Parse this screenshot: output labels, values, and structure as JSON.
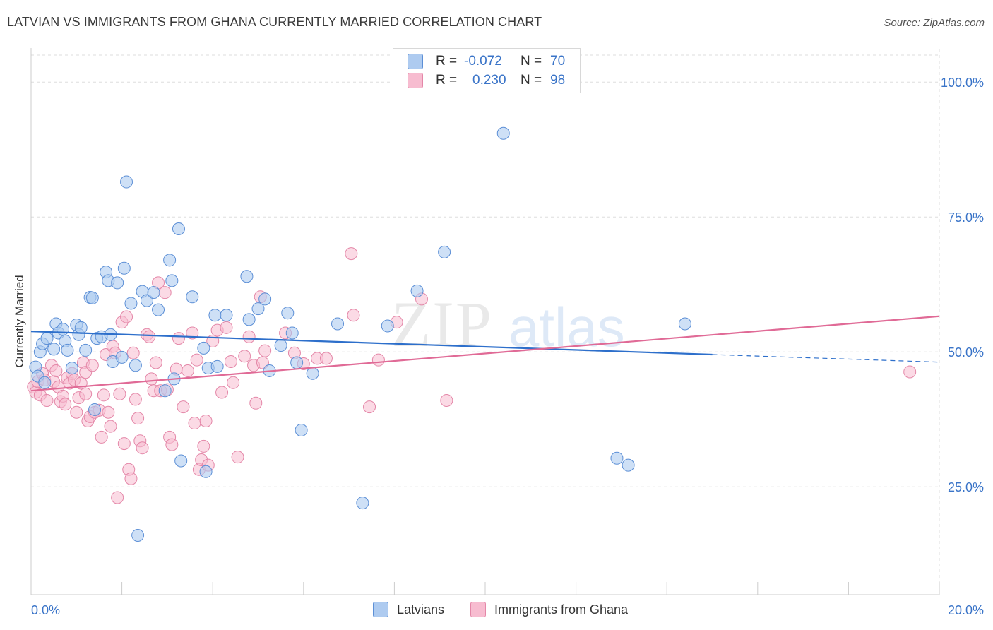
{
  "title": "LATVIAN VS IMMIGRANTS FROM GHANA CURRENTLY MARRIED CORRELATION CHART",
  "source": "Source: ZipAtlas.com",
  "watermark": {
    "zip": "ZIP",
    "atlas": "atlas"
  },
  "legend": {
    "latvians": {
      "r_label": "R =",
      "r_value": "-0.072",
      "n_label": "N =",
      "n_value": "70"
    },
    "ghana": {
      "r_label": "R =",
      "r_value": "0.230",
      "n_label": "N =",
      "n_value": "98"
    }
  },
  "bottom_legend": {
    "latvians": "Latvians",
    "ghana": "Immigrants from Ghana"
  },
  "colors": {
    "latvian_fill": "#aecbf0",
    "latvian_stroke": "#5c8fd6",
    "latvian_line": "#2d6fcb",
    "ghana_fill": "#f7bcd0",
    "ghana_stroke": "#e487a8",
    "ghana_line": "#e06a96",
    "tick_label": "#3a74c8",
    "grid": "#dddddd"
  },
  "chart_data": {
    "type": "scatter",
    "title": "LATVIAN VS IMMIGRANTS FROM GHANA CURRENTLY MARRIED CORRELATION CHART",
    "xlabel": "",
    "ylabel": "Currently Married",
    "xlim": [
      0,
      20
    ],
    "ylim": [
      5,
      105
    ],
    "x_tick_labels": [
      "0.0%",
      "20.0%"
    ],
    "y_ticks": [
      25,
      50,
      75,
      100
    ],
    "y_tick_labels": [
      "25.0%",
      "50.0%",
      "75.0%",
      "100.0%"
    ],
    "grid": true,
    "series": [
      {
        "name": "Latvians",
        "points": [
          [
            0.1,
            47.2
          ],
          [
            0.15,
            45.5
          ],
          [
            0.2,
            50.0
          ],
          [
            0.25,
            51.5
          ],
          [
            0.35,
            52.5
          ],
          [
            0.5,
            50.5
          ],
          [
            0.55,
            55.2
          ],
          [
            0.6,
            53.5
          ],
          [
            0.7,
            54.2
          ],
          [
            0.75,
            52.0
          ],
          [
            0.8,
            50.3
          ],
          [
            0.9,
            47.0
          ],
          [
            1.0,
            55.0
          ],
          [
            1.05,
            53.2
          ],
          [
            1.1,
            54.5
          ],
          [
            1.2,
            50.3
          ],
          [
            1.3,
            60.1
          ],
          [
            1.35,
            60.0
          ],
          [
            1.45,
            52.5
          ],
          [
            1.55,
            52.8
          ],
          [
            1.65,
            64.8
          ],
          [
            1.7,
            63.2
          ],
          [
            1.75,
            53.2
          ],
          [
            1.8,
            48.2
          ],
          [
            1.9,
            62.8
          ],
          [
            2.0,
            49.0
          ],
          [
            2.05,
            65.5
          ],
          [
            2.1,
            81.5
          ],
          [
            2.2,
            59.0
          ],
          [
            2.3,
            47.5
          ],
          [
            2.45,
            61.2
          ],
          [
            2.55,
            59.5
          ],
          [
            2.7,
            61.0
          ],
          [
            2.8,
            57.8
          ],
          [
            2.95,
            42.8
          ],
          [
            3.05,
            67.0
          ],
          [
            3.1,
            63.2
          ],
          [
            3.15,
            45.0
          ],
          [
            3.25,
            72.8
          ],
          [
            3.3,
            29.8
          ],
          [
            3.55,
            60.2
          ],
          [
            3.8,
            50.7
          ],
          [
            3.85,
            27.8
          ],
          [
            3.9,
            47.0
          ],
          [
            4.05,
            56.8
          ],
          [
            4.1,
            47.3
          ],
          [
            4.3,
            56.8
          ],
          [
            4.75,
            64.0
          ],
          [
            4.8,
            56.0
          ],
          [
            5.0,
            58.0
          ],
          [
            5.15,
            59.8
          ],
          [
            5.25,
            46.5
          ],
          [
            5.5,
            51.2
          ],
          [
            5.65,
            57.2
          ],
          [
            5.75,
            53.5
          ],
          [
            5.85,
            48.0
          ],
          [
            5.95,
            35.5
          ],
          [
            6.2,
            46.0
          ],
          [
            6.75,
            55.2
          ],
          [
            7.3,
            22.0
          ],
          [
            7.85,
            54.8
          ],
          [
            8.5,
            61.3
          ],
          [
            9.1,
            68.5
          ],
          [
            10.4,
            90.5
          ],
          [
            12.9,
            30.3
          ],
          [
            13.15,
            29.0
          ],
          [
            14.4,
            55.2
          ],
          [
            1.4,
            39.3
          ],
          [
            2.35,
            16.0
          ],
          [
            0.3,
            44.3
          ]
        ]
      },
      {
        "name": "Immigrants from Ghana",
        "points": [
          [
            0.05,
            43.5
          ],
          [
            0.1,
            42.5
          ],
          [
            0.15,
            44.5
          ],
          [
            0.2,
            42.0
          ],
          [
            0.25,
            46.0
          ],
          [
            0.3,
            44.8
          ],
          [
            0.35,
            41.0
          ],
          [
            0.45,
            47.5
          ],
          [
            0.5,
            44.5
          ],
          [
            0.55,
            46.5
          ],
          [
            0.6,
            43.5
          ],
          [
            0.65,
            40.8
          ],
          [
            0.7,
            41.8
          ],
          [
            0.75,
            40.3
          ],
          [
            0.8,
            45.2
          ],
          [
            0.85,
            44.2
          ],
          [
            0.9,
            46.0
          ],
          [
            0.95,
            44.8
          ],
          [
            1.0,
            38.8
          ],
          [
            1.05,
            41.5
          ],
          [
            1.1,
            44.2
          ],
          [
            1.15,
            48.0
          ],
          [
            1.2,
            46.2
          ],
          [
            1.25,
            37.2
          ],
          [
            1.3,
            38.0
          ],
          [
            1.35,
            47.5
          ],
          [
            1.4,
            38.8
          ],
          [
            1.5,
            39.2
          ],
          [
            1.55,
            34.2
          ],
          [
            1.6,
            42.0
          ],
          [
            1.65,
            49.5
          ],
          [
            1.7,
            38.8
          ],
          [
            1.75,
            36.2
          ],
          [
            1.8,
            51.0
          ],
          [
            1.85,
            49.8
          ],
          [
            1.9,
            23.0
          ],
          [
            1.95,
            42.2
          ],
          [
            2.0,
            55.5
          ],
          [
            2.05,
            33.0
          ],
          [
            2.1,
            56.5
          ],
          [
            2.15,
            28.2
          ],
          [
            2.2,
            26.5
          ],
          [
            2.25,
            49.8
          ],
          [
            2.3,
            41.2
          ],
          [
            2.35,
            37.7
          ],
          [
            2.4,
            33.5
          ],
          [
            2.45,
            32.2
          ],
          [
            2.55,
            53.2
          ],
          [
            2.6,
            52.8
          ],
          [
            2.65,
            45.0
          ],
          [
            2.7,
            42.8
          ],
          [
            2.75,
            48.0
          ],
          [
            2.8,
            62.8
          ],
          [
            2.85,
            42.8
          ],
          [
            2.95,
            61.0
          ],
          [
            3.0,
            43.0
          ],
          [
            3.05,
            34.2
          ],
          [
            3.1,
            32.8
          ],
          [
            3.2,
            46.8
          ],
          [
            3.25,
            52.5
          ],
          [
            3.35,
            39.8
          ],
          [
            3.45,
            46.5
          ],
          [
            3.55,
            53.5
          ],
          [
            3.6,
            36.8
          ],
          [
            3.65,
            48.5
          ],
          [
            3.7,
            28.2
          ],
          [
            3.75,
            30.0
          ],
          [
            3.8,
            32.5
          ],
          [
            3.85,
            37.2
          ],
          [
            3.9,
            29.0
          ],
          [
            4.0,
            52.0
          ],
          [
            4.1,
            54.0
          ],
          [
            4.2,
            42.5
          ],
          [
            4.3,
            54.5
          ],
          [
            4.4,
            48.2
          ],
          [
            4.45,
            44.3
          ],
          [
            4.55,
            30.5
          ],
          [
            4.7,
            49.2
          ],
          [
            4.8,
            52.8
          ],
          [
            4.9,
            47.5
          ],
          [
            4.95,
            40.5
          ],
          [
            5.05,
            60.2
          ],
          [
            5.1,
            48.0
          ],
          [
            5.15,
            50.2
          ],
          [
            5.6,
            53.5
          ],
          [
            5.8,
            49.8
          ],
          [
            6.0,
            47.8
          ],
          [
            6.3,
            48.8
          ],
          [
            6.5,
            48.8
          ],
          [
            7.05,
            68.2
          ],
          [
            7.1,
            56.8
          ],
          [
            7.45,
            39.8
          ],
          [
            7.65,
            48.5
          ],
          [
            8.05,
            55.5
          ],
          [
            8.6,
            59.8
          ],
          [
            9.15,
            41.0
          ],
          [
            19.35,
            46.3
          ],
          [
            1.2,
            42.2
          ]
        ]
      }
    ],
    "trend_lines": [
      {
        "name": "Latvians",
        "x": [
          0,
          15.0
        ],
        "y": [
          53.8,
          49.5
        ],
        "dashed_extension": {
          "x": [
            15.0,
            20
          ],
          "y": [
            49.5,
            48.1
          ]
        }
      },
      {
        "name": "Immigrants from Ghana",
        "x": [
          0,
          20
        ],
        "y": [
          42.8,
          56.6
        ]
      }
    ]
  }
}
